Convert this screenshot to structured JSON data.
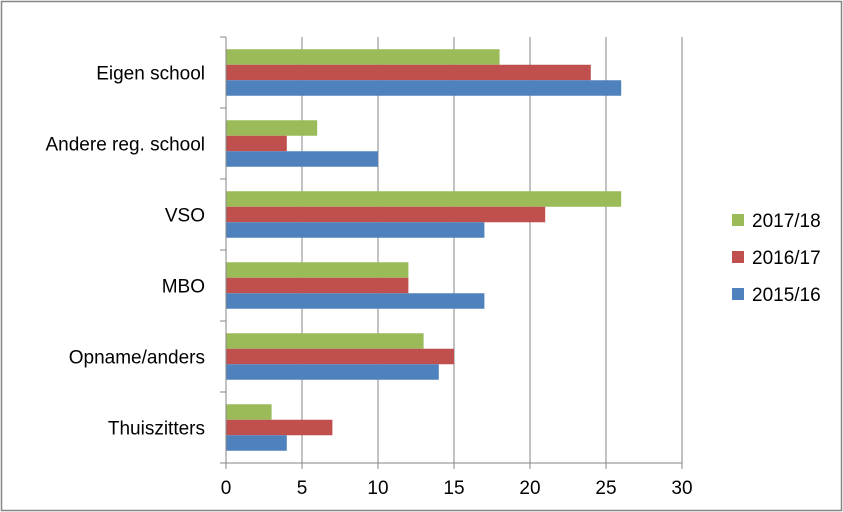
{
  "chart_data": {
    "type": "bar",
    "orientation": "horizontal",
    "categories": [
      "Eigen school",
      "Andere reg. school",
      "VSO",
      "MBO",
      "Opname/anders",
      "Thuiszitters"
    ],
    "series": [
      {
        "name": "2017/18",
        "color": "#9BBB59",
        "values": [
          18,
          6,
          26,
          12,
          13,
          3
        ]
      },
      {
        "name": "2016/17",
        "color": "#C0504D",
        "values": [
          24,
          4,
          21,
          12,
          15,
          7
        ]
      },
      {
        "name": "2015/16",
        "color": "#4F81BD",
        "values": [
          26,
          10,
          17,
          17,
          14,
          4
        ]
      }
    ],
    "x_ticks": [
      "0",
      "5",
      "10",
      "15",
      "20",
      "25",
      "30"
    ],
    "xlim": [
      0,
      30
    ],
    "grid": "vertical",
    "legend_position": "right",
    "legend_order": [
      "2017/18",
      "2016/17",
      "2015/16"
    ]
  }
}
